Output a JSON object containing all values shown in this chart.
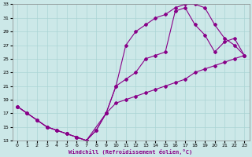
{
  "xlabel": "Windchill (Refroidissement éolien,°C)",
  "background_color": "#cce8e8",
  "grid_color": "#aad4d4",
  "line_color": "#880088",
  "xlim": [
    -0.5,
    23.5
  ],
  "ylim": [
    13,
    33
  ],
  "xticks": [
    0,
    1,
    2,
    3,
    4,
    5,
    6,
    7,
    8,
    9,
    10,
    11,
    12,
    13,
    14,
    15,
    16,
    17,
    18,
    19,
    20,
    21,
    22,
    23
  ],
  "yticks": [
    13,
    15,
    17,
    19,
    21,
    23,
    25,
    27,
    29,
    31,
    33
  ],
  "line1_x": [
    0,
    1,
    2,
    3,
    4,
    5,
    6,
    7,
    9,
    10,
    11,
    12,
    13,
    14,
    15,
    16,
    17,
    18,
    19,
    20,
    21,
    22,
    23
  ],
  "line1_y": [
    18,
    17,
    16,
    15,
    14.5,
    14,
    13.5,
    13,
    17,
    21,
    27,
    29,
    30,
    31,
    31.5,
    32.5,
    33,
    33,
    32.5,
    30,
    28,
    27,
    25.5
  ],
  "line2_x": [
    0,
    1,
    2,
    3,
    4,
    5,
    6,
    7,
    8,
    9,
    10,
    11,
    12,
    13,
    14,
    15,
    16,
    17,
    18,
    19,
    20,
    21,
    22,
    23
  ],
  "line2_y": [
    18,
    17,
    16,
    15,
    14.5,
    14,
    13.5,
    13,
    14.5,
    17,
    21,
    22,
    23,
    25,
    25.5,
    26,
    32,
    32.5,
    30,
    28.5,
    26,
    27.5,
    28,
    25.5
  ],
  "line3_x": [
    0,
    1,
    2,
    3,
    4,
    5,
    6,
    7,
    8,
    9,
    10,
    11,
    12,
    13,
    14,
    15,
    16,
    17,
    18,
    19,
    20,
    21,
    22,
    23
  ],
  "line3_y": [
    18,
    17,
    16,
    15,
    14.5,
    14,
    13.5,
    13,
    14.5,
    17,
    18.5,
    19,
    19.5,
    20,
    20.5,
    21,
    21.5,
    22,
    23,
    23.5,
    24,
    24.5,
    25,
    25.5
  ]
}
